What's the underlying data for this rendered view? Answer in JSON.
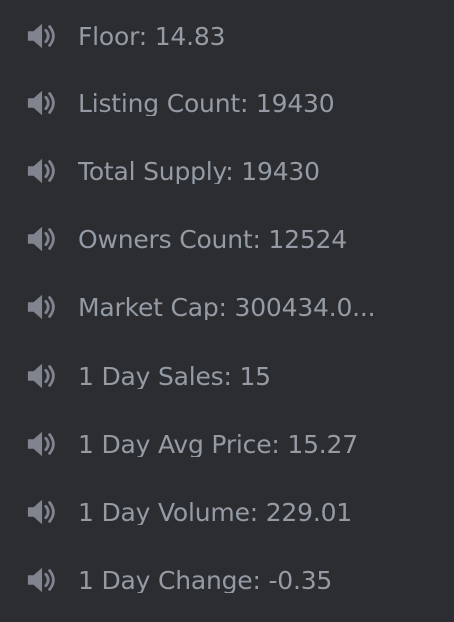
{
  "channel_list": {
    "icon": "speaker-icon",
    "text_color": "#949ba4",
    "icon_color": "#80848e",
    "background": "#2b2d31",
    "items": [
      {
        "label": "Floor: 14.83"
      },
      {
        "label": "Listing Count: 19430"
      },
      {
        "label": "Total Supply: 19430"
      },
      {
        "label": "Owners Count: 12524"
      },
      {
        "label": "Market Cap: 300434.0..."
      },
      {
        "label": "1 Day Sales: 15"
      },
      {
        "label": "1 Day Avg Price: 15.27"
      },
      {
        "label": "1 Day Volume: 229.01"
      },
      {
        "label": "1 Day Change: -0.35"
      }
    ]
  }
}
